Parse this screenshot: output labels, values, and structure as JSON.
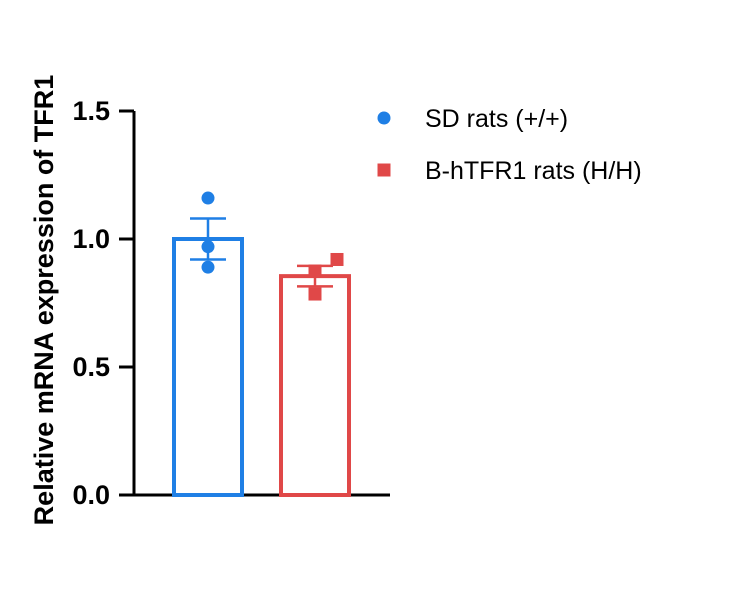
{
  "chart_data": {
    "type": "bar",
    "title": "",
    "xlabel": "",
    "ylabel": "Relative mRNA expression of TFR1",
    "ylim": [
      0,
      1.5
    ],
    "yticks": [
      0.0,
      0.5,
      1.0,
      1.5
    ],
    "ytick_labels": [
      "0.0",
      "0.5",
      "1.0",
      "1.5"
    ],
    "series": [
      {
        "name": "SD rats (+/+)",
        "color": "#1f7fe5",
        "marker": "circle",
        "mean": 1.0,
        "error": 0.08,
        "points": [
          1.16,
          0.97,
          0.89
        ]
      },
      {
        "name": "B-hTFR1 rats (H/H)",
        "color": "#e04848",
        "marker": "square",
        "mean": 0.855,
        "error": 0.04,
        "points": [
          0.92,
          0.875,
          0.785
        ]
      }
    ],
    "legend_position": "top-right"
  }
}
